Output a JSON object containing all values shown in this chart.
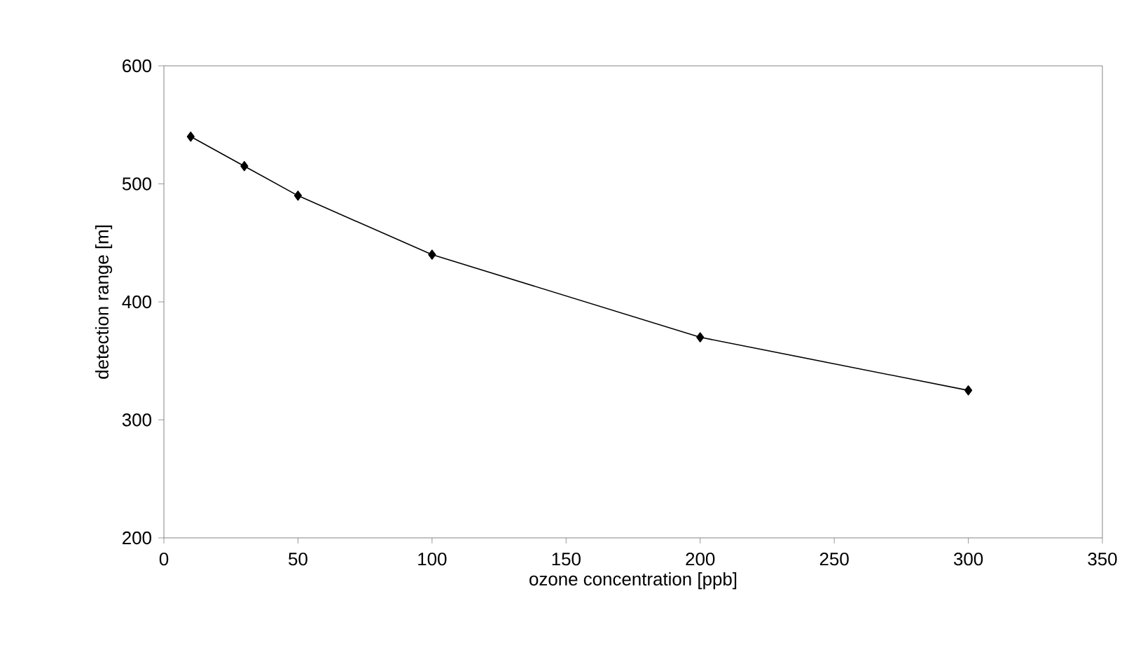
{
  "chart_data": {
    "type": "line",
    "xlabel": "ozone concentration [ppb]",
    "ylabel": "detection range [m]",
    "x": [
      10,
      30,
      50,
      100,
      200,
      300
    ],
    "series": [
      {
        "color": "#000000",
        "values": [
          540,
          515,
          490,
          440,
          370,
          325
        ]
      }
    ],
    "xlim": [
      0,
      350
    ],
    "xticks": [
      0,
      50,
      100,
      150,
      200,
      250,
      300,
      350
    ],
    "ylim": [
      200,
      600
    ],
    "yticks": [
      200,
      300,
      400,
      500,
      600
    ],
    "marker": "diamond",
    "line_style": "solid",
    "grid": false
  }
}
